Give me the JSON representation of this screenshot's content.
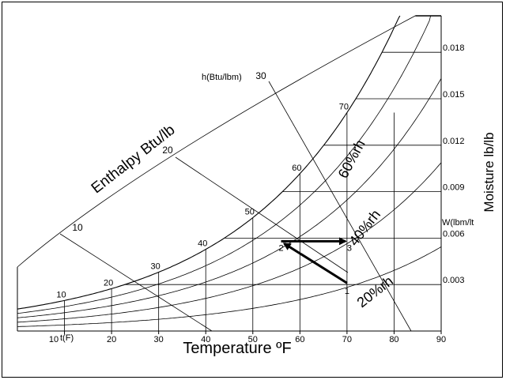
{
  "chart_data": {
    "type": "diagram",
    "title": "",
    "xlabel": "Temperature ºF",
    "ylabel_right": "Moisture lb/lb",
    "enthalpy_axis_label": "Enthalpy Btu/lb",
    "enthalpy_axis_label_short": "h(Btu/lbm)",
    "moisture_axis_label_short": "W(lbm/lt",
    "x_range": [
      0,
      90
    ],
    "y_range": [
      0,
      0.02
    ],
    "x_ticks": [
      10,
      20,
      30,
      40,
      50,
      60,
      70,
      80,
      90
    ],
    "x_tick_labels": [
      "10",
      "20",
      "30",
      "40",
      "50",
      "60",
      "70",
      "80",
      "90"
    ],
    "x_tick_unit_label": "t(F)",
    "y_ticks": [
      0.003,
      0.006,
      0.009,
      0.012,
      0.015,
      0.018
    ],
    "y_tick_labels": [
      "0.003",
      "0.006",
      "0.009",
      "0.012",
      "0.015",
      "0.018"
    ],
    "saturation_temp_labels": [
      "10",
      "20",
      "30",
      "40",
      "50",
      "60",
      "70"
    ],
    "enthalpy_labels": [
      "10",
      "20",
      "30"
    ],
    "rh_curves": [
      {
        "label": "20%rh",
        "rh": 0.2
      },
      {
        "label": "40%rh",
        "rh": 0.4
      },
      {
        "label": "60%rh",
        "rh": 0.6
      },
      {
        "rh": 0.8
      },
      {
        "rh": 1.0
      }
    ],
    "states": [
      {
        "label": "1",
        "t": 70,
        "w": 0.0031
      },
      {
        "label": "2",
        "t": 56,
        "w": 0.0058
      },
      {
        "label": "3",
        "t": 70,
        "w": 0.0058
      }
    ]
  }
}
